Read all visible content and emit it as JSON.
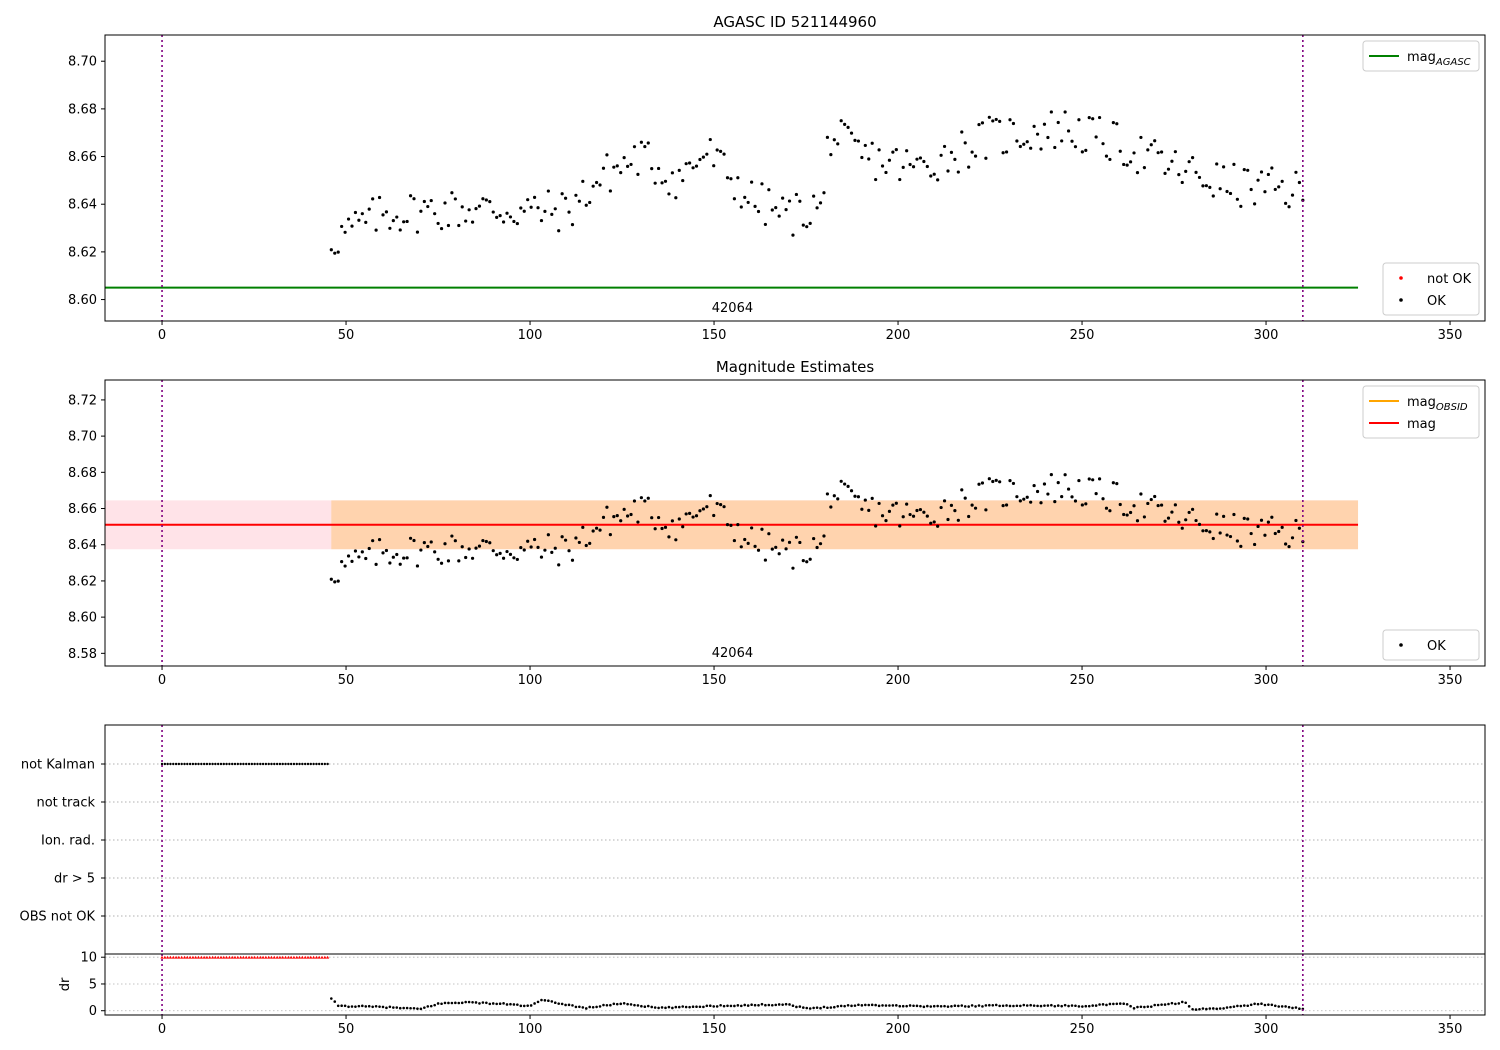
{
  "chart_data": [
    {
      "type": "scatter",
      "title": "AGASC ID 521144960",
      "xlim": [
        -15.5,
        359.5
      ],
      "ylim": [
        8.591,
        8.711
      ],
      "xticks": [
        0,
        50,
        100,
        150,
        200,
        250,
        300,
        350
      ],
      "yticks": [
        8.6,
        8.62,
        8.64,
        8.66,
        8.68,
        8.7
      ],
      "ytick_format": 2,
      "obsid_label": "42064",
      "obsid_label_x": 155,
      "obsid_boundaries": [
        0,
        310
      ],
      "hlines": [
        {
          "name": "mag_AGASC",
          "y": 8.605,
          "x": [
            -15.5,
            325
          ],
          "color": "#008000"
        }
      ],
      "legends": [
        {
          "position": "top-right",
          "entries": [
            {
              "kind": "line",
              "color": "#008000",
              "label": "mag",
              "sub": "AGASC"
            }
          ]
        },
        {
          "position": "bottom-right",
          "entries": [
            {
              "kind": "dot",
              "color": "#ff0000",
              "label": "not OK"
            },
            {
              "kind": "dot",
              "color": "#000000",
              "label": "OK"
            }
          ]
        }
      ],
      "series": [
        {
          "name": "OK",
          "color": "#000000",
          "x_start": 46,
          "x_end": 310,
          "points": 283,
          "trend": [
            [
              46,
              8.625
            ],
            [
              60,
              8.636
            ],
            [
              80,
              8.638
            ],
            [
              110,
              8.637
            ],
            [
              120,
              8.652
            ],
            [
              130,
              8.66
            ],
            [
              140,
              8.65
            ],
            [
              148,
              8.662
            ],
            [
              160,
              8.642
            ],
            [
              170,
              8.635
            ],
            [
              180,
              8.64
            ],
            [
              181,
              8.67
            ],
            [
              190,
              8.66
            ],
            [
              205,
              8.655
            ],
            [
              225,
              8.668
            ],
            [
              245,
              8.672
            ],
            [
              260,
              8.665
            ],
            [
              275,
              8.655
            ],
            [
              290,
              8.648
            ],
            [
              310,
              8.645
            ]
          ]
        }
      ]
    },
    {
      "type": "scatter",
      "title": "Magnitude Estimates",
      "xlim": [
        -15.5,
        359.5
      ],
      "ylim": [
        8.573,
        8.731
      ],
      "xticks": [
        0,
        50,
        100,
        150,
        200,
        250,
        300,
        350
      ],
      "yticks": [
        8.58,
        8.6,
        8.62,
        8.64,
        8.66,
        8.68,
        8.7,
        8.72
      ],
      "ytick_format": 2,
      "obsid_label": "42064",
      "obsid_label_x": 155,
      "obsid_boundaries": [
        0,
        310
      ],
      "bands": [
        {
          "y": [
            8.6375,
            8.6645
          ],
          "x": [
            -15.5,
            325
          ],
          "color": "#ffc0cb",
          "opacity": 0.45
        },
        {
          "y": [
            8.6375,
            8.6645
          ],
          "x": [
            46,
            325
          ],
          "color": "#ffa500",
          "opacity": 0.25
        }
      ],
      "hlines": [
        {
          "name": "mag",
          "y": 8.651,
          "x": [
            -15.5,
            325
          ],
          "color": "#ff0000"
        }
      ],
      "legends": [
        {
          "position": "top-right",
          "entries": [
            {
              "kind": "line",
              "color": "#ffa500",
              "label": "mag",
              "sub": "OBSID"
            },
            {
              "kind": "line",
              "color": "#ff0000",
              "label": "mag"
            }
          ]
        },
        {
          "position": "bottom-right",
          "entries": [
            {
              "kind": "dot",
              "color": "#000000",
              "label": "OK"
            }
          ]
        }
      ],
      "series": [
        {
          "name": "OK",
          "color": "#000000",
          "x_start": 46,
          "x_end": 310,
          "points": 283,
          "trend": [
            [
              46,
              8.625
            ],
            [
              60,
              8.636
            ],
            [
              80,
              8.638
            ],
            [
              110,
              8.637
            ],
            [
              120,
              8.652
            ],
            [
              130,
              8.66
            ],
            [
              140,
              8.65
            ],
            [
              148,
              8.662
            ],
            [
              160,
              8.642
            ],
            [
              170,
              8.635
            ],
            [
              180,
              8.64
            ],
            [
              181,
              8.67
            ],
            [
              190,
              8.66
            ],
            [
              205,
              8.655
            ],
            [
              225,
              8.668
            ],
            [
              245,
              8.672
            ],
            [
              260,
              8.665
            ],
            [
              275,
              8.655
            ],
            [
              290,
              8.648
            ],
            [
              310,
              8.645
            ]
          ]
        }
      ]
    },
    {
      "type": "scatter",
      "title": "",
      "xlim": [
        -15.5,
        359.5
      ],
      "categories": [
        "not Kalman",
        "not track",
        "Ion. rad.",
        "dr > 5",
        "OBS not OK"
      ],
      "obsid_boundaries": [
        0,
        310
      ],
      "flags": [
        {
          "category": "not Kalman",
          "x_start": 0,
          "x_end": 45,
          "color": "#000000"
        }
      ]
    },
    {
      "type": "scatter",
      "title": "",
      "xlim": [
        -15.5,
        359.5
      ],
      "ylim": [
        -0.8,
        10.6
      ],
      "xticks": [
        0,
        50,
        100,
        150,
        200,
        250,
        300,
        350
      ],
      "yticks": [
        0,
        5,
        10
      ],
      "ylabel": "dr",
      "obsid_boundaries": [
        0,
        310
      ],
      "series": [
        {
          "name": "dr (capped)",
          "color": "#ff0000",
          "x_start": 0,
          "x_end": 45,
          "value": 10,
          "points": 60
        },
        {
          "name": "dr",
          "color": "#000000",
          "x_start": 46,
          "x_end": 310,
          "points": 283,
          "trend": [
            [
              46,
              2.2
            ],
            [
              48,
              0.9
            ],
            [
              60,
              0.7
            ],
            [
              70,
              0.3
            ],
            [
              75,
              1.3
            ],
            [
              82,
              1.6
            ],
            [
              95,
              1.2
            ],
            [
              100,
              0.8
            ],
            [
              103,
              2.0
            ],
            [
              115,
              0.5
            ],
            [
              125,
              1.4
            ],
            [
              135,
              0.5
            ],
            [
              150,
              0.9
            ],
            [
              170,
              1.2
            ],
            [
              175,
              0.4
            ],
            [
              190,
              1.1
            ],
            [
              210,
              0.8
            ],
            [
              230,
              1.0
            ],
            [
              250,
              0.9
            ],
            [
              262,
              1.3
            ],
            [
              264,
              0.5
            ],
            [
              278,
              1.6
            ],
            [
              280,
              0.2
            ],
            [
              290,
              0.6
            ],
            [
              298,
              1.3
            ],
            [
              310,
              0.4
            ]
          ]
        }
      ]
    }
  ],
  "colors": {
    "boundary": "#800080",
    "grid": "#b0b0b0"
  }
}
